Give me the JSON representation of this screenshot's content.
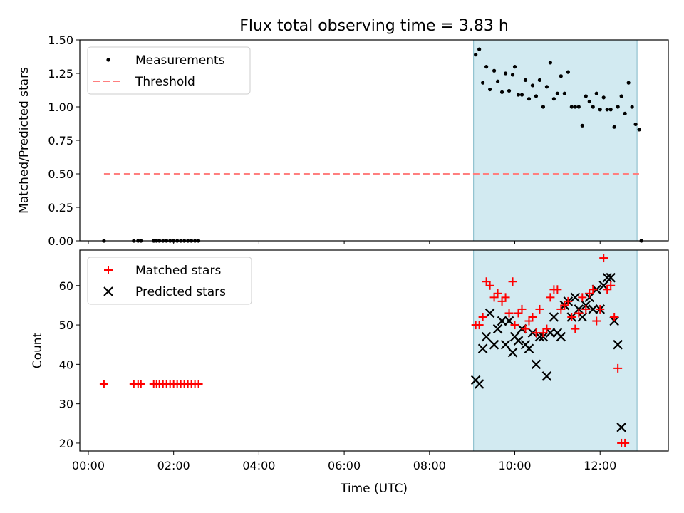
{
  "title": "Flux total observing time = 3.83 h",
  "xlabel": "Time (UTC)",
  "x_ticks": [
    "00:00",
    "02:00",
    "04:00",
    "06:00",
    "08:00",
    "10:00",
    "12:00"
  ],
  "colors": {
    "measurements": "#000000",
    "threshold": "#ff7f7f",
    "matched": "#ff0000",
    "predicted": "#000000",
    "highlight": "#add8e6"
  },
  "chart_data": [
    {
      "type": "scatter",
      "ylabel": "Matched/Predicted stars",
      "xlim": [
        "-00:12",
        "13:36"
      ],
      "ylim": [
        0,
        1.5
      ],
      "y_ticks": [
        "0.00",
        "0.25",
        "0.50",
        "0.75",
        "1.00",
        "1.25",
        "1.50"
      ],
      "legend_position": "upper-left",
      "highlight_span": [
        "09:02",
        "12:52"
      ],
      "threshold": {
        "name": "Threshold",
        "y": 0.5,
        "x_range": [
          "00:22",
          "12:58"
        ],
        "style": "dashed"
      },
      "series": [
        {
          "name": "Measurements",
          "marker": "dot",
          "points": [
            [
              "00:22",
              0.0
            ],
            [
              "01:04",
              0.0
            ],
            [
              "01:10",
              0.0
            ],
            [
              "01:14",
              0.0
            ],
            [
              "01:32",
              0.0
            ],
            [
              "01:36",
              0.0
            ],
            [
              "01:40",
              0.0
            ],
            [
              "01:45",
              0.0
            ],
            [
              "01:50",
              0.0
            ],
            [
              "01:55",
              0.0
            ],
            [
              "02:00",
              0.0
            ],
            [
              "02:05",
              0.0
            ],
            [
              "02:10",
              0.0
            ],
            [
              "02:15",
              0.0
            ],
            [
              "02:20",
              0.0
            ],
            [
              "02:25",
              0.0
            ],
            [
              "02:30",
              0.0
            ],
            [
              "02:35",
              0.0
            ],
            [
              "09:05",
              1.39
            ],
            [
              "09:10",
              1.43
            ],
            [
              "09:15",
              1.18
            ],
            [
              "09:20",
              1.3
            ],
            [
              "09:25",
              1.13
            ],
            [
              "09:31",
              1.27
            ],
            [
              "09:36",
              1.19
            ],
            [
              "09:42",
              1.11
            ],
            [
              "09:47",
              1.25
            ],
            [
              "09:52",
              1.12
            ],
            [
              "09:57",
              1.24
            ],
            [
              "10:00",
              1.3
            ],
            [
              "10:05",
              1.09
            ],
            [
              "10:10",
              1.09
            ],
            [
              "10:15",
              1.2
            ],
            [
              "10:20",
              1.06
            ],
            [
              "10:25",
              1.16
            ],
            [
              "10:30",
              1.08
            ],
            [
              "10:35",
              1.2
            ],
            [
              "10:40",
              1.0
            ],
            [
              "10:45",
              1.15
            ],
            [
              "10:50",
              1.33
            ],
            [
              "10:55",
              1.06
            ],
            [
              "11:00",
              1.1
            ],
            [
              "11:05",
              1.23
            ],
            [
              "11:10",
              1.1
            ],
            [
              "11:15",
              1.26
            ],
            [
              "11:20",
              1.0
            ],
            [
              "11:25",
              1.0
            ],
            [
              "11:30",
              1.0
            ],
            [
              "11:35",
              0.86
            ],
            [
              "11:40",
              1.08
            ],
            [
              "11:45",
              1.04
            ],
            [
              "11:50",
              1.0
            ],
            [
              "11:55",
              1.1
            ],
            [
              "12:00",
              0.98
            ],
            [
              "12:05",
              1.07
            ],
            [
              "12:10",
              0.98
            ],
            [
              "12:15",
              0.98
            ],
            [
              "12:20",
              0.85
            ],
            [
              "12:25",
              1.0
            ],
            [
              "12:30",
              1.08
            ],
            [
              "12:35",
              0.95
            ],
            [
              "12:40",
              1.18
            ],
            [
              "12:45",
              1.0
            ],
            [
              "12:50",
              0.87
            ],
            [
              "12:55",
              0.83
            ],
            [
              "12:58",
              0.0
            ]
          ]
        }
      ]
    },
    {
      "type": "scatter",
      "ylabel": "Count",
      "xlim": [
        "-00:12",
        "13:36"
      ],
      "ylim": [
        18,
        69
      ],
      "y_ticks": [
        "20",
        "30",
        "40",
        "50",
        "60"
      ],
      "legend_position": "upper-left",
      "highlight_span": [
        "09:02",
        "12:52"
      ],
      "series": [
        {
          "name": "Matched stars",
          "marker": "plus",
          "points": [
            [
              "00:22",
              35
            ],
            [
              "01:04",
              35
            ],
            [
              "01:10",
              35
            ],
            [
              "01:14",
              35
            ],
            [
              "01:32",
              35
            ],
            [
              "01:36",
              35
            ],
            [
              "01:40",
              35
            ],
            [
              "01:45",
              35
            ],
            [
              "01:50",
              35
            ],
            [
              "01:55",
              35
            ],
            [
              "02:00",
              35
            ],
            [
              "02:05",
              35
            ],
            [
              "02:10",
              35
            ],
            [
              "02:15",
              35
            ],
            [
              "02:20",
              35
            ],
            [
              "02:25",
              35
            ],
            [
              "02:30",
              35
            ],
            [
              "02:35",
              35
            ],
            [
              "09:05",
              50
            ],
            [
              "09:10",
              50
            ],
            [
              "09:15",
              52
            ],
            [
              "09:20",
              61
            ],
            [
              "09:25",
              60
            ],
            [
              "09:31",
              57
            ],
            [
              "09:36",
              58
            ],
            [
              "09:42",
              56
            ],
            [
              "09:47",
              57
            ],
            [
              "09:52",
              53
            ],
            [
              "09:57",
              61
            ],
            [
              "10:00",
              50
            ],
            [
              "10:05",
              53
            ],
            [
              "10:10",
              54
            ],
            [
              "10:15",
              49
            ],
            [
              "10:20",
              51
            ],
            [
              "10:25",
              52
            ],
            [
              "10:30",
              48
            ],
            [
              "10:35",
              54
            ],
            [
              "10:40",
              48
            ],
            [
              "10:45",
              49
            ],
            [
              "10:50",
              57
            ],
            [
              "10:55",
              59
            ],
            [
              "11:00",
              59
            ],
            [
              "11:05",
              54
            ],
            [
              "11:10",
              55
            ],
            [
              "11:15",
              56
            ],
            [
              "11:20",
              52
            ],
            [
              "11:25",
              49
            ],
            [
              "11:30",
              53
            ],
            [
              "11:35",
              57
            ],
            [
              "11:40",
              54
            ],
            [
              "11:45",
              58
            ],
            [
              "11:50",
              59
            ],
            [
              "11:55",
              51
            ],
            [
              "12:00",
              54
            ],
            [
              "12:05",
              67
            ],
            [
              "12:10",
              59
            ],
            [
              "12:15",
              60
            ],
            [
              "12:20",
              52
            ],
            [
              "12:25",
              39
            ],
            [
              "12:30",
              20
            ],
            [
              "12:35",
              20
            ]
          ]
        },
        {
          "name": "Predicted stars",
          "marker": "x",
          "points": [
            [
              "09:05",
              36
            ],
            [
              "09:10",
              35
            ],
            [
              "09:15",
              44
            ],
            [
              "09:20",
              47
            ],
            [
              "09:25",
              53
            ],
            [
              "09:31",
              45
            ],
            [
              "09:36",
              49
            ],
            [
              "09:42",
              51
            ],
            [
              "09:47",
              45
            ],
            [
              "09:52",
              51
            ],
            [
              "09:57",
              43
            ],
            [
              "10:00",
              47
            ],
            [
              "10:05",
              46
            ],
            [
              "10:10",
              49
            ],
            [
              "10:15",
              45
            ],
            [
              "10:20",
              44
            ],
            [
              "10:25",
              48
            ],
            [
              "10:30",
              40
            ],
            [
              "10:35",
              47
            ],
            [
              "10:40",
              47
            ],
            [
              "10:45",
              37
            ],
            [
              "10:50",
              48
            ],
            [
              "10:55",
              52
            ],
            [
              "11:00",
              48
            ],
            [
              "11:05",
              47
            ],
            [
              "11:10",
              55
            ],
            [
              "11:15",
              56
            ],
            [
              "11:20",
              52
            ],
            [
              "11:25",
              57
            ],
            [
              "11:30",
              54
            ],
            [
              "11:35",
              52
            ],
            [
              "11:40",
              55
            ],
            [
              "11:45",
              57
            ],
            [
              "11:50",
              54
            ],
            [
              "11:55",
              59
            ],
            [
              "12:00",
              54
            ],
            [
              "12:05",
              60
            ],
            [
              "12:10",
              62
            ],
            [
              "12:15",
              62
            ],
            [
              "12:20",
              51
            ],
            [
              "12:25",
              45
            ],
            [
              "12:30",
              24
            ]
          ]
        }
      ]
    }
  ]
}
